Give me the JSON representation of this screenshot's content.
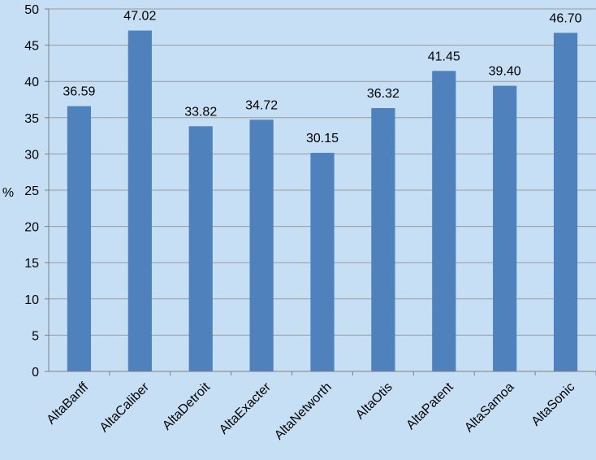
{
  "chart_data": {
    "type": "bar",
    "title": "",
    "xlabel": "",
    "ylabel": "%",
    "ylim": [
      0,
      50
    ],
    "ytick_step": 5,
    "yticks": [
      "0",
      "5",
      "10",
      "15",
      "20",
      "25",
      "30",
      "35",
      "40",
      "45",
      "50"
    ],
    "grid": true,
    "legend": "none",
    "categories": [
      "AltaBanff",
      "AltaCaliber",
      "AltaDetroit",
      "AltaExacter",
      "AltaNetworth",
      "AltaOtis",
      "AltaPatent",
      "AltaSamoa",
      "AltaSonic"
    ],
    "values": [
      36.59,
      47.02,
      33.82,
      34.72,
      30.15,
      36.32,
      41.45,
      39.4,
      46.7
    ],
    "value_labels": [
      "36.59",
      "47.02",
      "33.82",
      "34.72",
      "30.15",
      "36.32",
      "41.45",
      "39.40",
      "46.70"
    ],
    "colors": {
      "background": "#c6dff5",
      "bar": "#4f81bd",
      "grid": "#9a9a9a",
      "axis": "#808080"
    }
  }
}
